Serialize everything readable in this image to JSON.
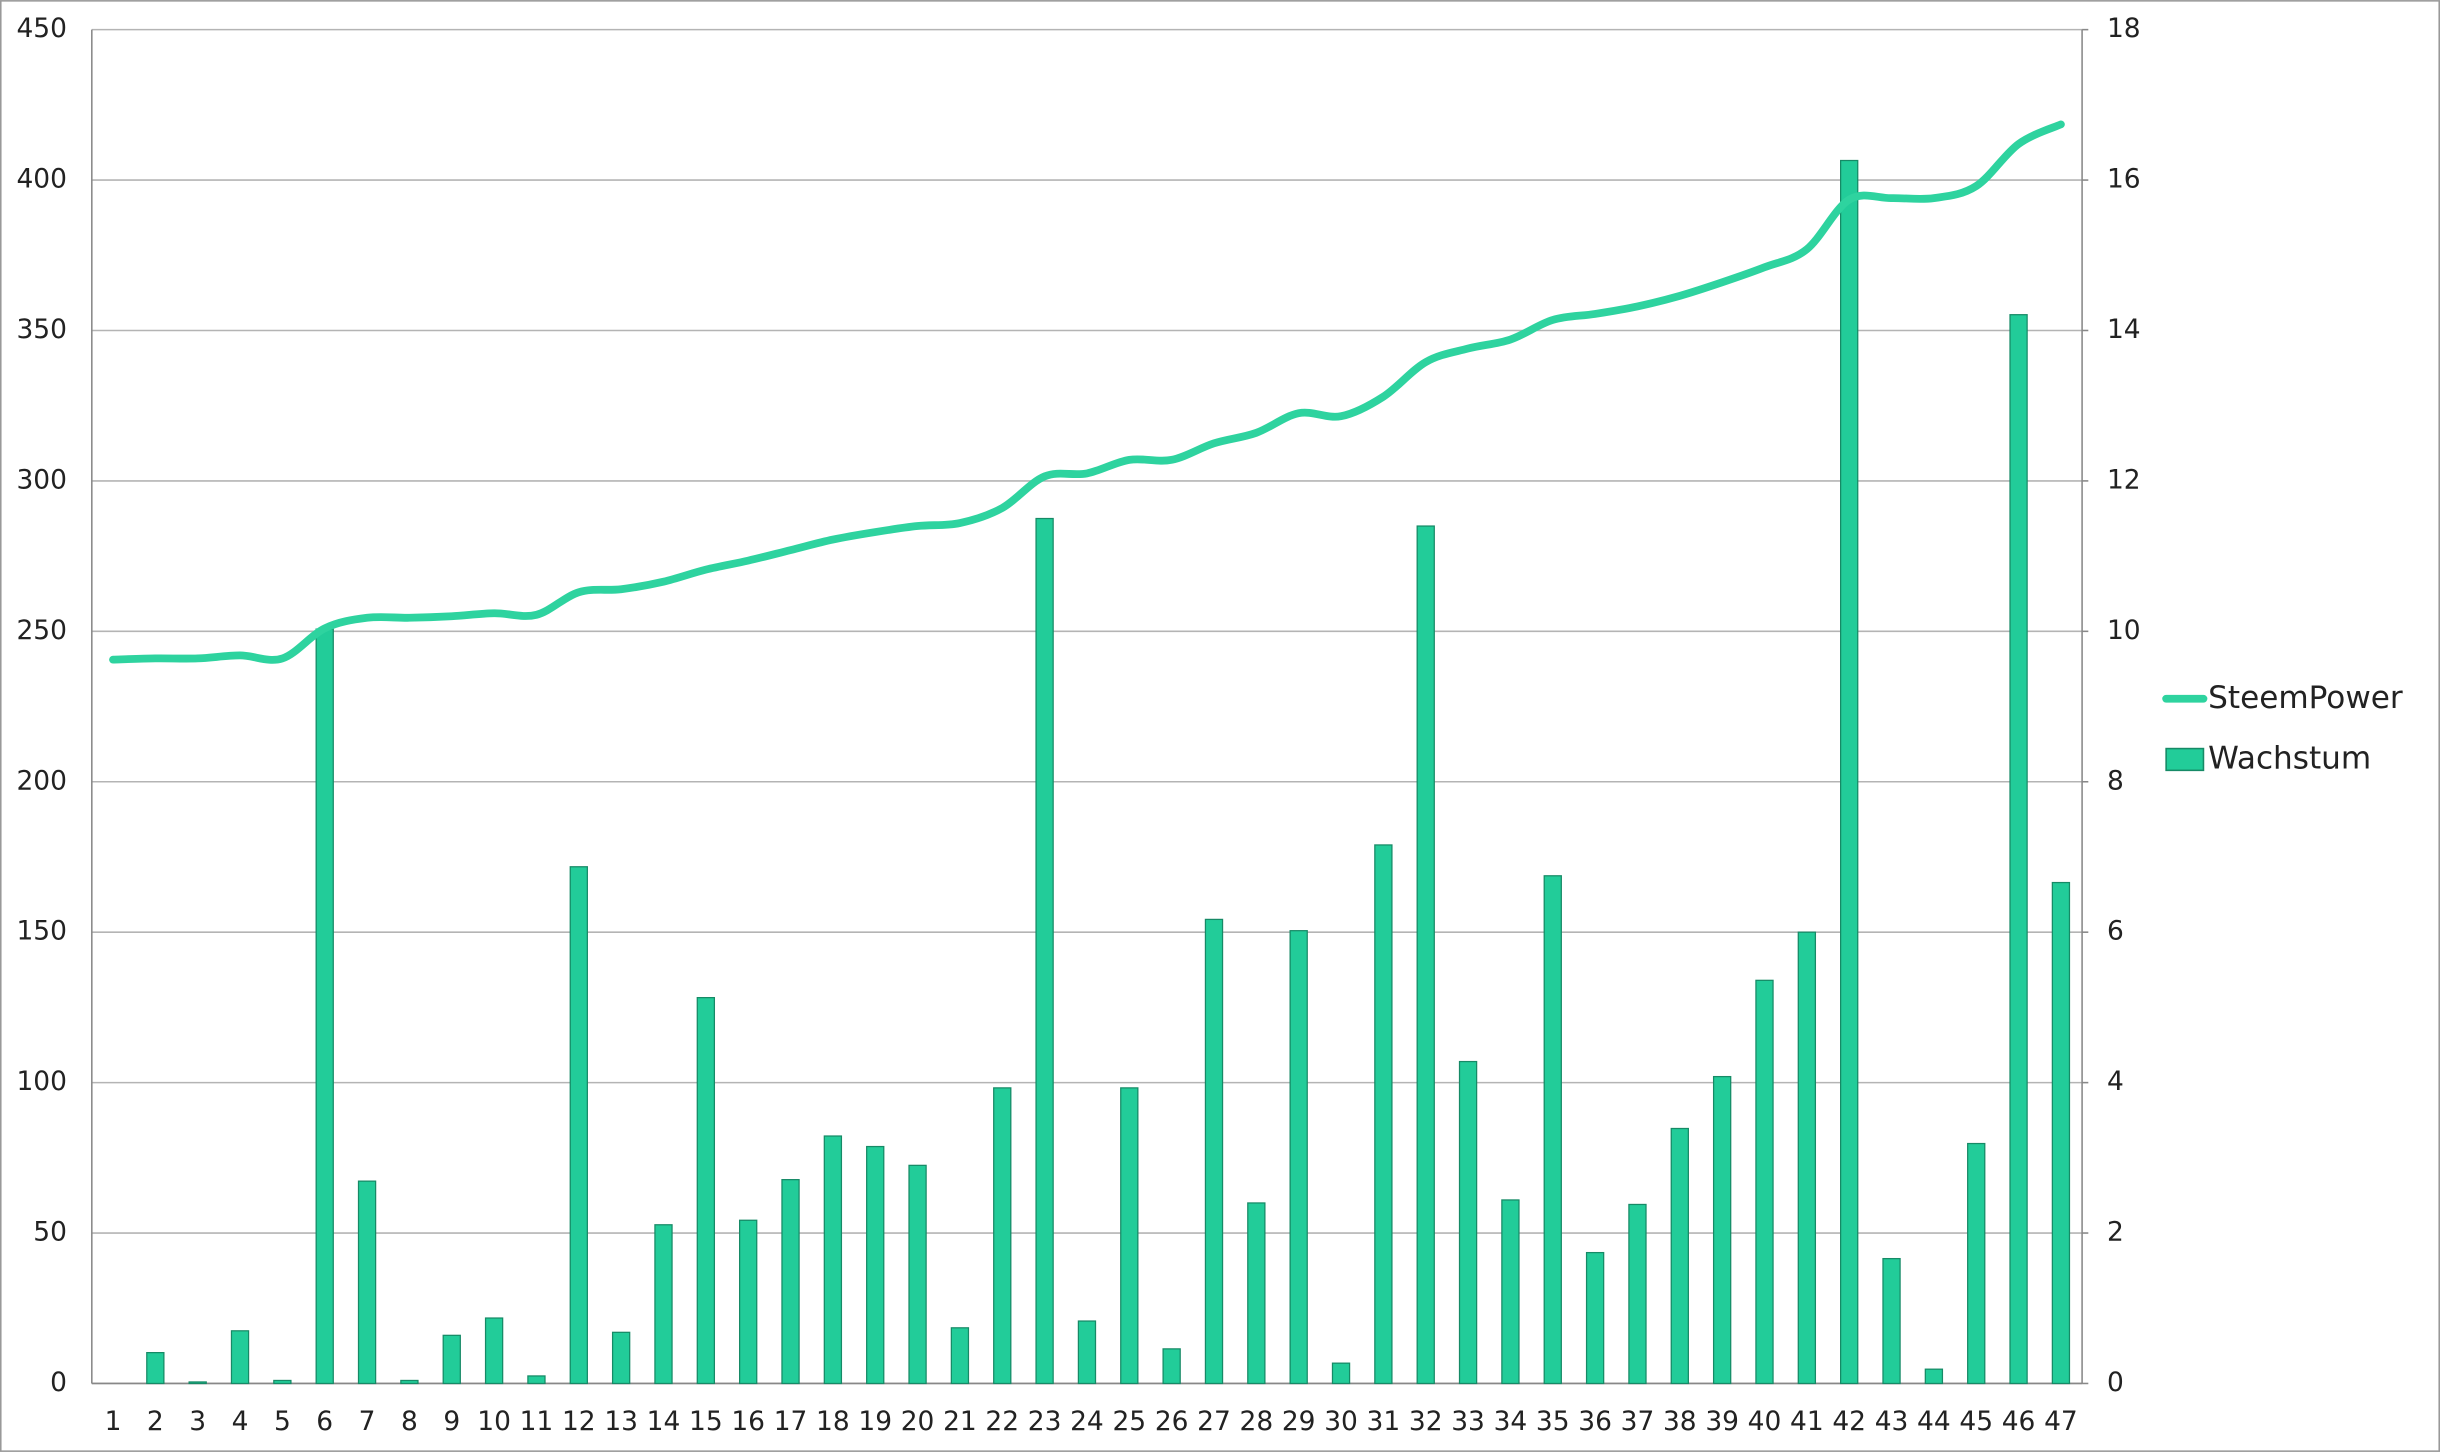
{
  "chart_data": {
    "type": "bar-line",
    "categories": [
      "1",
      "2",
      "3",
      "4",
      "5",
      "6",
      "7",
      "8",
      "9",
      "10",
      "11",
      "12",
      "13",
      "14",
      "15",
      "16",
      "17",
      "18",
      "19",
      "20",
      "21",
      "22",
      "23",
      "24",
      "25",
      "26",
      "27",
      "28",
      "29",
      "30",
      "31",
      "32",
      "33",
      "34",
      "35",
      "36",
      "37",
      "38",
      "39",
      "40",
      "41",
      "42",
      "43",
      "44",
      "45",
      "46",
      "47"
    ],
    "series": [
      {
        "name": "SteemPower",
        "type": "line",
        "color": "#2ed39f",
        "axis": "y",
        "values": [
          240.6,
          241,
          241,
          242,
          241,
          251,
          254.5,
          254.5,
          255,
          256,
          255.5,
          263,
          264,
          266.5,
          270.5,
          273.5,
          277,
          280.5,
          283,
          285,
          286,
          291,
          301.5,
          302.5,
          307,
          307,
          312.5,
          316,
          322.5,
          321.5,
          328,
          339.5,
          344,
          347,
          353.5,
          355.5,
          358,
          361.5,
          366,
          371,
          377,
          393.5,
          394,
          394,
          398,
          412,
          418.5
        ]
      },
      {
        "name": "Wachstum",
        "type": "bar",
        "color": "#22cc99",
        "axis": "y2",
        "values": [
          0,
          0.41,
          0.02,
          0.7,
          0.04,
          10.03,
          2.69,
          0.04,
          0.64,
          0.87,
          0.1,
          6.87,
          0.68,
          2.11,
          5.13,
          2.17,
          2.71,
          3.29,
          3.15,
          2.9,
          0.74,
          3.93,
          11.5,
          0.83,
          3.93,
          0.46,
          6.17,
          2.4,
          6.02,
          0.27,
          7.16,
          11.4,
          4.28,
          2.44,
          6.75,
          1.74,
          2.38,
          3.39,
          4.08,
          5.36,
          6,
          16.26,
          1.66,
          0.19,
          3.19,
          14.21,
          6.66
        ]
      }
    ],
    "ylim": [
      0,
      450
    ],
    "yticks": [
      0,
      50,
      100,
      150,
      200,
      250,
      300,
      350,
      400,
      450
    ],
    "y2lim": [
      0,
      18
    ],
    "y2ticks": [
      0,
      2,
      4,
      6,
      8,
      10,
      12,
      14,
      16,
      18
    ],
    "grid": true,
    "legend": "right"
  }
}
